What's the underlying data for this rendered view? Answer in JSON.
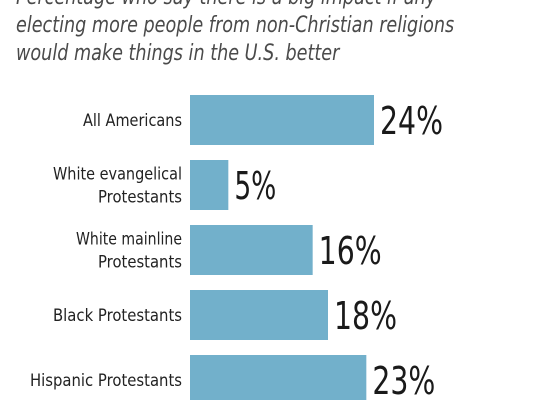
{
  "subtitle_lines": [
    "Percentage who say there is a big impact if any",
    "electing more people from non-Christian religions",
    "would make things in the U.S. better"
  ],
  "chart_data": {
    "type": "bar",
    "orientation": "horizontal",
    "categories": [
      [
        "All Americans"
      ],
      [
        "White evangelical",
        "Protestants"
      ],
      [
        "White mainline",
        "Protestants"
      ],
      [
        "Black Protestants"
      ],
      [
        "Hispanic Protestants"
      ]
    ],
    "values": [
      24,
      5,
      16,
      18,
      23
    ],
    "value_labels": [
      "24%",
      "5%",
      "16%",
      "18%",
      "23%"
    ],
    "bar_color": "#72b0cb",
    "xlim": [
      0,
      24
    ]
  }
}
